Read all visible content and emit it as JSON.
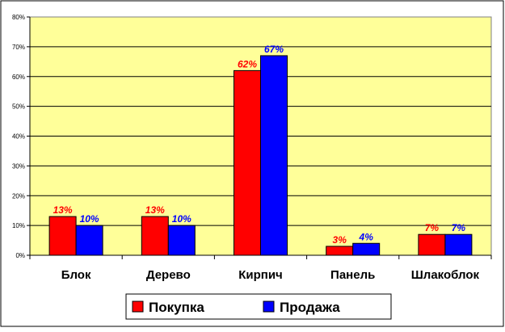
{
  "chart_data": {
    "type": "bar",
    "categories": [
      "Блок",
      "Дерево",
      "Кирпич",
      "Панель",
      "Шлакоблок"
    ],
    "series": [
      {
        "name": "Покупка",
        "values": [
          13,
          13,
          62,
          3,
          7
        ],
        "labels": [
          "13%",
          "13%",
          "62%",
          "3%",
          "7%"
        ],
        "color": "#ff0000",
        "label_color": "#ff0000"
      },
      {
        "name": "Продажа",
        "values": [
          10,
          10,
          67,
          4,
          7
        ],
        "labels": [
          "10%",
          "10%",
          "67%",
          "4%",
          "7%"
        ],
        "color": "#0000ff",
        "label_color": "#0000ff"
      }
    ],
    "ylim": [
      0,
      80
    ],
    "yticks": [
      0,
      10,
      20,
      30,
      40,
      50,
      60,
      70,
      80
    ],
    "ytick_labels": [
      "0%",
      "10%",
      "20%",
      "30%",
      "40%",
      "50%",
      "60%",
      "70%",
      "80%"
    ],
    "grid": true,
    "legend_position": "bottom",
    "plot_background": "#ffff99"
  }
}
